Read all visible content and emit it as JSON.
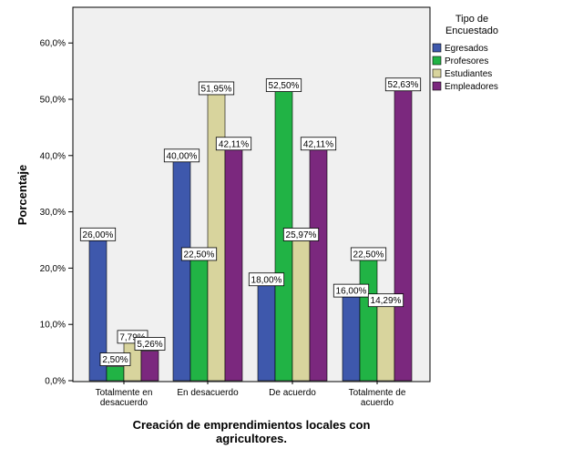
{
  "chart_data": {
    "type": "bar",
    "title": "",
    "xlabel_lines": [
      "Creación de emprendimientos locales con",
      "agricultores."
    ],
    "ylabel": "Porcentaje",
    "ylim": [
      0,
      0.65
    ],
    "yticks": [
      0,
      0.1,
      0.2,
      0.3,
      0.4,
      0.5,
      0.6
    ],
    "ytick_labels": [
      "0,0%",
      "10,0%",
      "20,0%",
      "30,0%",
      "40,0%",
      "50,0%",
      "60,0%"
    ],
    "categories": [
      [
        "Totalmente en",
        "desacuerdo"
      ],
      [
        "En desacuerdo"
      ],
      [
        "De acuerdo"
      ],
      [
        "Totalmente de",
        "acuerdo"
      ]
    ],
    "legend_title_lines": [
      "Tipo de",
      "Encuestado"
    ],
    "legend_position": "right",
    "series": [
      {
        "name": "Egresados",
        "color": "#3e58ac",
        "values": [
          0.26,
          0.4,
          0.18,
          0.16
        ],
        "labels": [
          "26,00%",
          "40,00%",
          "18,00%",
          "16,00%"
        ]
      },
      {
        "name": "Profesores",
        "color": "#21b345",
        "values": [
          0.025,
          0.225,
          0.525,
          0.225
        ],
        "labels": [
          "2,50%",
          "22,50%",
          "52,50%",
          "22,50%"
        ]
      },
      {
        "name": "Estudiantes",
        "color": "#d8d49d",
        "values": [
          0.0779,
          0.5195,
          0.2597,
          0.1429
        ],
        "labels": [
          "7,79%",
          "51,95%",
          "25,97%",
          "14,29%"
        ]
      },
      {
        "name": "Empleadores",
        "color": "#7b287e",
        "values": [
          0.0526,
          0.4211,
          0.4211,
          0.5263
        ],
        "labels": [
          "5,26%",
          "42,11%",
          "42,11%",
          "52,63%"
        ]
      }
    ]
  }
}
